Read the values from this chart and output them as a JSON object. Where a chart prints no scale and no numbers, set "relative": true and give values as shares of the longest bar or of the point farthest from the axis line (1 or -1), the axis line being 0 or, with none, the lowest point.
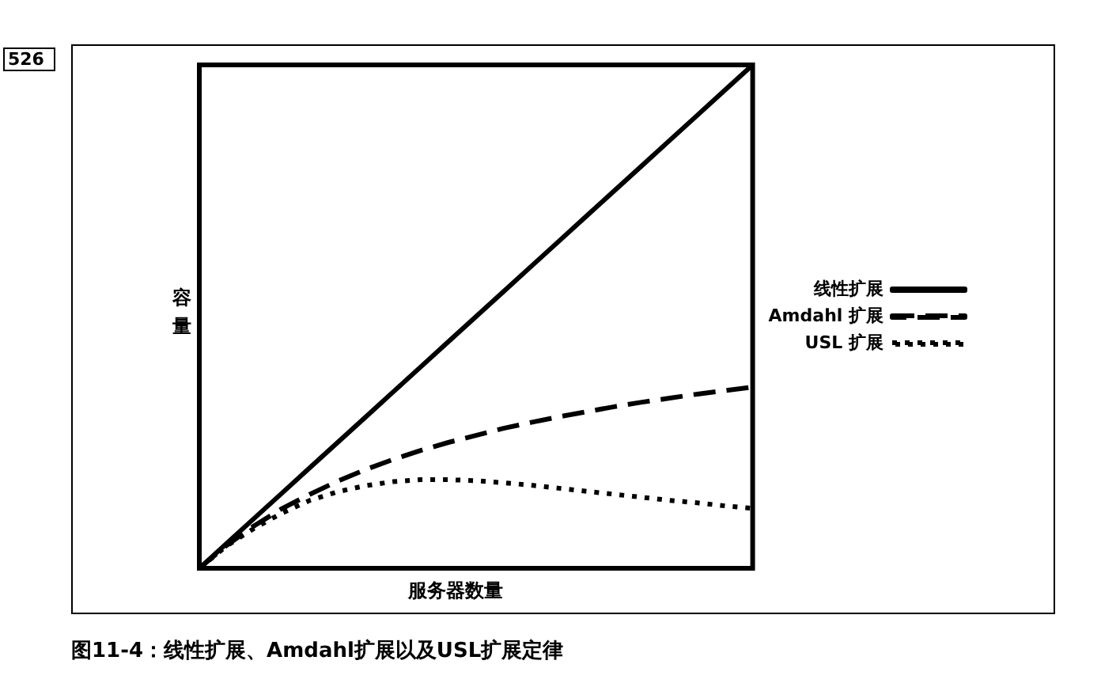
{
  "chart_data": {
    "type": "line",
    "xlabel": "服务器数量",
    "ylabel": "容量",
    "relative": true,
    "legend": "right",
    "marker": "none",
    "categories": [
      null,
      null,
      null,
      null,
      null,
      null,
      null,
      null,
      null,
      null,
      null,
      null,
      null,
      null,
      null,
      null,
      null,
      null,
      null,
      null,
      null
    ],
    "series": [
      {
        "name": "线性扩展",
        "color": "#000000",
        "line_style": "solid",
        "values": [
          0,
          0.05,
          0.1,
          0.15,
          0.2,
          0.25,
          0.3,
          0.35,
          0.4,
          0.45,
          0.5,
          0.55,
          0.6,
          0.65,
          0.7,
          0.75,
          0.8,
          0.85,
          0.9,
          0.95,
          1
        ]
      },
      {
        "name": "Amdahl 扩展",
        "color": "#000000",
        "line_style": "dashed",
        "values": [
          0,
          0.046,
          0.085,
          0.119,
          0.147,
          0.173,
          0.196,
          0.216,
          0.234,
          0.25,
          0.264,
          0.278,
          0.29,
          0.301,
          0.311,
          0.321,
          0.33,
          0.338,
          0.346,
          0.353,
          0.36
        ]
      },
      {
        "name": "USL 扩展",
        "color": "#000000",
        "line_style": "dotted",
        "values": [
          0,
          0.045,
          0.08,
          0.11,
          0.135,
          0.152,
          0.164,
          0.172,
          0.176,
          0.176,
          0.174,
          0.17,
          0.165,
          0.159,
          0.153,
          0.147,
          0.141,
          0.135,
          0.13,
          0.124,
          0.119
        ]
      }
    ],
    "annotations": [
      "526",
      "图11-4：线性扩展、Amdahl扩展以及USL扩展定律"
    ]
  }
}
